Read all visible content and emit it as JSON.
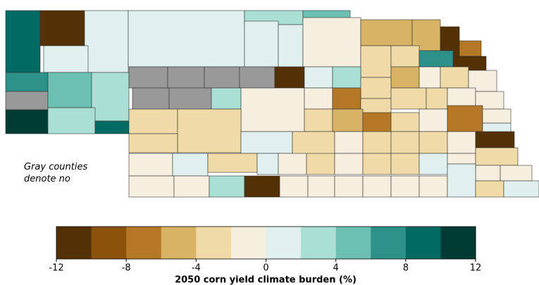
{
  "map": {
    "type": "choropleth",
    "annotation": "Gray counties denote no data",
    "no_data_color": "#999999",
    "values": [
      9,
      -11,
      1,
      1,
      7,
      null,
      11,
      5,
      3,
      3,
      9,
      1,
      3,
      1,
      1,
      5,
      -1,
      -5,
      -5,
      -11,
      -7,
      -11,
      -3,
      -3,
      7,
      -5,
      -1,
      -3,
      -1,
      null,
      null,
      null,
      null,
      -11,
      1,
      3,
      -3,
      null,
      null,
      3,
      -1,
      -1,
      -7,
      -3,
      -3,
      -3,
      -1,
      -1,
      -3,
      -3,
      -3,
      -5,
      -7,
      -3,
      -1,
      -7,
      -1,
      1,
      -3,
      1,
      -3,
      -1,
      -3,
      -3,
      -3,
      -1,
      -11,
      -1,
      1,
      -3,
      1,
      -1,
      -3,
      -1,
      -3,
      -3,
      1,
      -1,
      -3,
      -1,
      -1,
      -1,
      -1,
      3,
      -11,
      -1,
      -1,
      -1,
      -1,
      -1,
      -1,
      1,
      -3,
      1
    ]
  },
  "colorbar": {
    "label": "2050 corn yield climate burden (%)",
    "lim": [
      -12,
      12
    ],
    "ticks": [
      -12,
      -8,
      -4,
      0,
      4,
      8,
      12
    ],
    "colors": [
      "#543005",
      "#8c510a",
      "#b47826",
      "#d8b365",
      "#f0dba8",
      "#f6efdf",
      "#e0f0ee",
      "#aadfd6",
      "#6cc0b2",
      "#2d918a",
      "#016b63",
      "#003c33"
    ]
  }
}
